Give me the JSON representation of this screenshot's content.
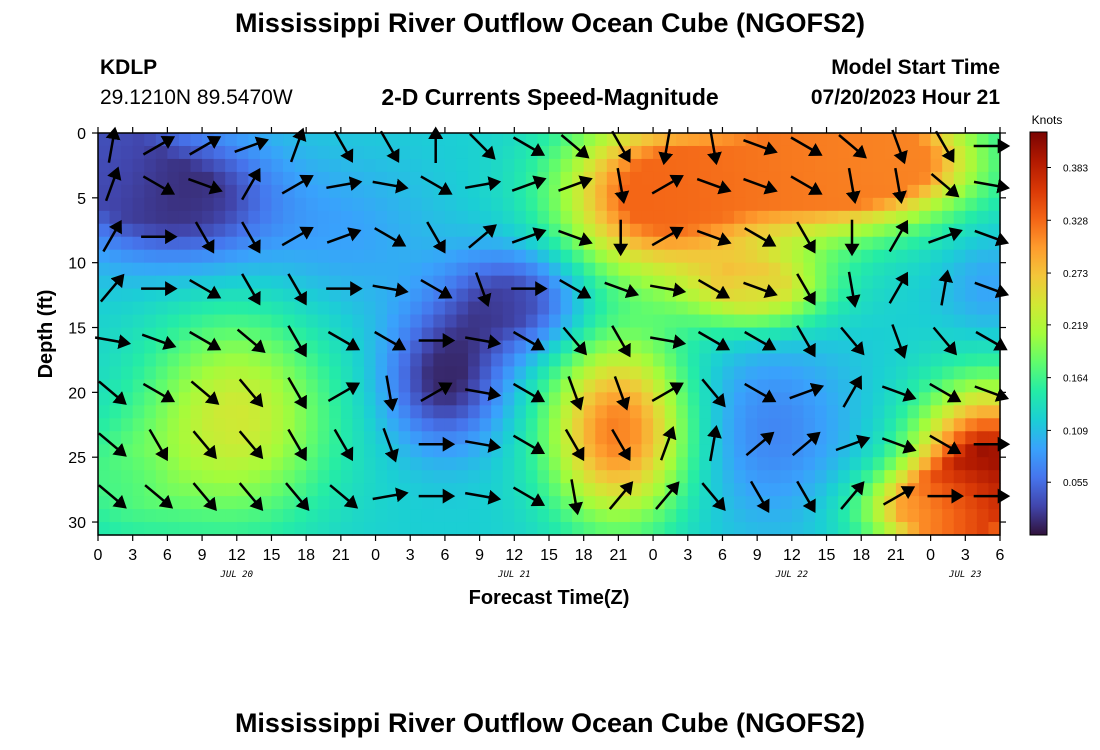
{
  "header": {
    "title": "Mississippi River Outflow Ocean Cube (NGOFS2)",
    "station": "KDLP",
    "coords": "29.1210N  89.5470W",
    "subtitle": "2-D Currents Speed-Magnitude",
    "model_start_label": "Model Start Time",
    "model_start_value": "07/20/2023 Hour 21"
  },
  "footer": {
    "title": "Mississippi River Outflow Ocean Cube (NGOFS2)"
  },
  "chart_data": {
    "type": "heatmap",
    "title": "2-D Currents Speed-Magnitude",
    "xlabel": "Forecast Time(Z)",
    "ylabel": "Depth (ft)",
    "x_tick_labels": [
      "0",
      "3",
      "6",
      "9",
      "12",
      "15",
      "18",
      "21",
      "0",
      "3",
      "6",
      "9",
      "12",
      "15",
      "18",
      "21",
      "0",
      "3",
      "6",
      "9",
      "12",
      "15",
      "18",
      "21",
      "0",
      "3",
      "6"
    ],
    "x_hours_range": [
      0,
      78
    ],
    "date_labels": [
      {
        "hour": 12,
        "text": "JUL 20"
      },
      {
        "hour": 36,
        "text": "JUL 21"
      },
      {
        "hour": 60,
        "text": "JUL 22"
      },
      {
        "hour": 75,
        "text": "JUL 23"
      }
    ],
    "y_ticks": [
      0,
      5,
      10,
      15,
      20,
      25,
      30
    ],
    "y_range": [
      0,
      31
    ],
    "y_inverted": true,
    "colorbar": {
      "units": "Knots",
      "min": 0.0,
      "max": 0.42,
      "ticks": [
        "0.383",
        "0.328",
        "0.273",
        "0.219",
        "0.164",
        "0.109",
        "0.055"
      ],
      "tick_values": [
        0.383,
        0.328,
        0.273,
        0.219,
        0.164,
        0.109,
        0.055
      ],
      "colormap": [
        "#30123b",
        "#4145ab",
        "#4675ed",
        "#39a2fc",
        "#1bcfd4",
        "#24eca6",
        "#61fc6c",
        "#a4fc3b",
        "#d1e834",
        "#f3c63a",
        "#fe9b2d",
        "#f36315",
        "#d93806",
        "#b11901",
        "#7a0402"
      ]
    },
    "speed_centers": [
      {
        "hour": 8,
        "depth": 5,
        "value": 0.01,
        "spread_h": 7,
        "spread_d": 5
      },
      {
        "hour": 1,
        "depth": 2,
        "value": 0.04,
        "spread_h": 5,
        "spread_d": 6
      },
      {
        "hour": 12,
        "depth": 22,
        "value": 0.24,
        "spread_h": 8,
        "spread_d": 8
      },
      {
        "hour": 2,
        "depth": 27,
        "value": 0.16,
        "spread_h": 6,
        "spread_d": 5
      },
      {
        "hour": 30,
        "depth": 19,
        "value": 0.01,
        "spread_h": 5,
        "spread_d": 5
      },
      {
        "hour": 36,
        "depth": 13,
        "value": 0.02,
        "spread_h": 6,
        "spread_d": 4
      },
      {
        "hour": 21,
        "depth": 8,
        "value": 0.09,
        "spread_h": 8,
        "spread_d": 6
      },
      {
        "hour": 45,
        "depth": 23,
        "value": 0.32,
        "spread_h": 6,
        "spread_d": 7
      },
      {
        "hour": 48,
        "depth": 5,
        "value": 0.33,
        "spread_h": 8,
        "spread_d": 6
      },
      {
        "hour": 60,
        "depth": 3,
        "value": 0.32,
        "spread_h": 10,
        "spread_d": 5
      },
      {
        "hour": 68,
        "depth": 2,
        "value": 0.31,
        "spread_h": 8,
        "spread_d": 4
      },
      {
        "hour": 57,
        "depth": 12,
        "value": 0.26,
        "spread_h": 6,
        "spread_d": 3
      },
      {
        "hour": 58,
        "depth": 23,
        "value": 0.07,
        "spread_h": 7,
        "spread_d": 7
      },
      {
        "hour": 77,
        "depth": 26,
        "value": 0.41,
        "spread_h": 6,
        "spread_d": 6
      },
      {
        "hour": 72,
        "depth": 29,
        "value": 0.28,
        "spread_h": 6,
        "spread_d": 3
      },
      {
        "hour": 77,
        "depth": 12,
        "value": 0.09,
        "spread_h": 4,
        "spread_d": 4
      }
    ],
    "vector_hours": [
      0,
      4,
      8,
      12,
      16,
      20,
      24,
      28,
      32,
      36,
      40,
      44,
      48,
      52,
      56,
      60,
      64,
      68,
      72,
      76
    ],
    "vector_depths": [
      1,
      4,
      8,
      12,
      16,
      20,
      24,
      28
    ],
    "vector_angles_deg": [
      [
        80,
        30,
        30,
        20,
        70,
        300,
        300,
        90,
        315,
        330,
        320,
        300,
        260,
        280,
        340,
        330,
        320,
        290,
        300,
        0
      ],
      [
        70,
        330,
        340,
        60,
        30,
        10,
        350,
        330,
        10,
        20,
        20,
        280,
        30,
        340,
        340,
        330,
        280,
        280,
        320,
        350
      ],
      [
        60,
        0,
        300,
        300,
        30,
        20,
        330,
        300,
        40,
        20,
        340,
        270,
        30,
        340,
        330,
        300,
        270,
        60,
        20,
        340
      ],
      [
        50,
        0,
        330,
        300,
        300,
        0,
        350,
        330,
        290,
        0,
        330,
        340,
        350,
        330,
        340,
        300,
        280,
        60,
        80,
        340
      ],
      [
        350,
        340,
        330,
        320,
        300,
        330,
        330,
        0,
        350,
        330,
        310,
        300,
        350,
        330,
        330,
        300,
        310,
        290,
        310,
        330
      ],
      [
        320,
        330,
        320,
        310,
        300,
        30,
        280,
        30,
        350,
        330,
        290,
        290,
        30,
        310,
        330,
        20,
        60,
        340,
        330,
        340
      ],
      [
        320,
        300,
        310,
        310,
        300,
        300,
        290,
        0,
        350,
        330,
        300,
        300,
        70,
        80,
        40,
        40,
        20,
        340,
        330,
        0
      ],
      [
        320,
        320,
        310,
        310,
        310,
        320,
        10,
        0,
        350,
        330,
        280,
        50,
        50,
        310,
        300,
        300,
        50,
        30,
        0,
        0
      ]
    ]
  }
}
